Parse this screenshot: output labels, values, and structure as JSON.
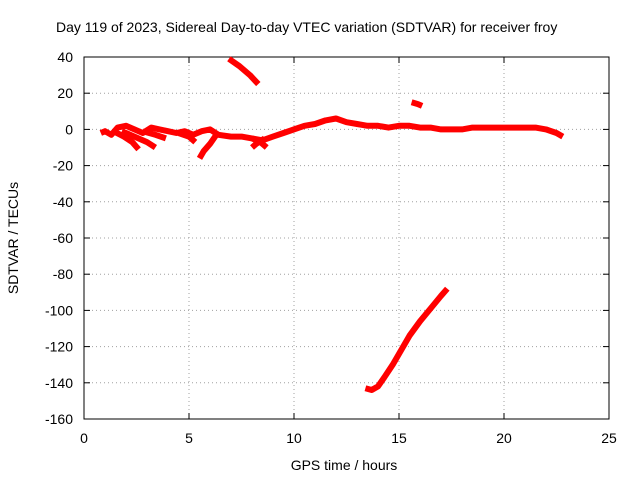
{
  "chart_data": {
    "type": "line",
    "title": "Day 119 of 2023, Sidereal Day-to-day VTEC variation (SDTVAR) for receiver froy",
    "xlabel": "GPS time / hours",
    "ylabel": "SDTVAR / TECUs",
    "xlim": [
      0,
      25
    ],
    "ylim": [
      -160,
      40
    ],
    "xticks": [
      0,
      5,
      10,
      15,
      20,
      25
    ],
    "yticks": [
      -160,
      -140,
      -120,
      -100,
      -80,
      -60,
      -40,
      -20,
      0,
      20,
      40
    ],
    "grid": true,
    "color": "#ff0000",
    "series": [
      {
        "name": "main-trace",
        "points": [
          [
            0.8,
            -2
          ],
          [
            1.0,
            -1
          ],
          [
            1.3,
            -3
          ],
          [
            1.6,
            1
          ],
          [
            2.0,
            2
          ],
          [
            2.4,
            0
          ],
          [
            2.8,
            -2
          ],
          [
            3.2,
            1
          ],
          [
            3.6,
            0
          ],
          [
            4.0,
            -1
          ],
          [
            4.4,
            -2
          ],
          [
            4.8,
            -1
          ],
          [
            5.2,
            -3
          ],
          [
            5.6,
            -1
          ],
          [
            6.0,
            0
          ],
          [
            6.4,
            -3
          ],
          [
            7.0,
            -4
          ],
          [
            7.5,
            -4
          ],
          [
            8.0,
            -5
          ],
          [
            8.5,
            -6
          ],
          [
            9.0,
            -4
          ],
          [
            9.5,
            -2
          ],
          [
            10.0,
            0
          ],
          [
            10.5,
            2
          ],
          [
            11.0,
            3
          ],
          [
            11.5,
            5
          ],
          [
            12.0,
            6
          ],
          [
            12.5,
            4
          ],
          [
            13.0,
            3
          ],
          [
            13.5,
            2
          ],
          [
            14.0,
            2
          ],
          [
            14.5,
            1
          ],
          [
            15.0,
            2
          ],
          [
            15.5,
            2
          ],
          [
            16.0,
            1
          ],
          [
            16.5,
            1
          ],
          [
            17.0,
            0
          ],
          [
            17.5,
            0
          ],
          [
            18.0,
            0
          ],
          [
            18.5,
            1
          ],
          [
            19.0,
            1
          ],
          [
            19.5,
            1
          ],
          [
            20.0,
            1
          ],
          [
            20.5,
            1
          ],
          [
            21.0,
            1
          ],
          [
            21.5,
            1
          ],
          [
            22.0,
            0
          ],
          [
            22.5,
            -2
          ],
          [
            22.8,
            -4
          ]
        ]
      },
      {
        "name": "branch-1",
        "points": [
          [
            1.4,
            -1
          ],
          [
            1.9,
            -4
          ],
          [
            2.3,
            -7
          ],
          [
            2.6,
            -11
          ]
        ]
      },
      {
        "name": "branch-2",
        "points": [
          [
            1.8,
            -1
          ],
          [
            2.4,
            -4
          ],
          [
            3.0,
            -7
          ],
          [
            3.4,
            -10
          ]
        ]
      },
      {
        "name": "branch-3",
        "points": [
          [
            2.8,
            -1
          ],
          [
            3.4,
            -3
          ],
          [
            3.9,
            -5
          ]
        ]
      },
      {
        "name": "branch-4",
        "points": [
          [
            4.5,
            -2
          ],
          [
            5.0,
            -4
          ],
          [
            5.3,
            -7
          ]
        ]
      },
      {
        "name": "branch-5",
        "points": [
          [
            6.3,
            -3
          ],
          [
            6.0,
            -8
          ],
          [
            5.7,
            -12
          ],
          [
            5.5,
            -16
          ]
        ]
      },
      {
        "name": "branch-6",
        "points": [
          [
            8.0,
            -5
          ],
          [
            8.4,
            -7
          ],
          [
            8.7,
            -10
          ]
        ]
      },
      {
        "name": "branch-7",
        "points": [
          [
            8.6,
            -5
          ],
          [
            8.2,
            -8
          ],
          [
            8.0,
            -10
          ]
        ]
      },
      {
        "name": "segment-top",
        "points": [
          [
            6.9,
            39
          ],
          [
            7.4,
            35
          ],
          [
            7.9,
            30
          ],
          [
            8.3,
            25
          ]
        ]
      },
      {
        "name": "segment-small",
        "points": [
          [
            15.6,
            15
          ],
          [
            15.9,
            14
          ],
          [
            16.1,
            13
          ]
        ]
      },
      {
        "name": "segment-low",
        "points": [
          [
            13.4,
            -143
          ],
          [
            13.7,
            -144
          ],
          [
            14.0,
            -142
          ],
          [
            14.3,
            -137
          ],
          [
            14.7,
            -130
          ],
          [
            15.1,
            -122
          ],
          [
            15.5,
            -114
          ],
          [
            16.0,
            -106
          ],
          [
            16.5,
            -99
          ],
          [
            17.0,
            -92
          ],
          [
            17.3,
            -88
          ]
        ]
      }
    ]
  }
}
